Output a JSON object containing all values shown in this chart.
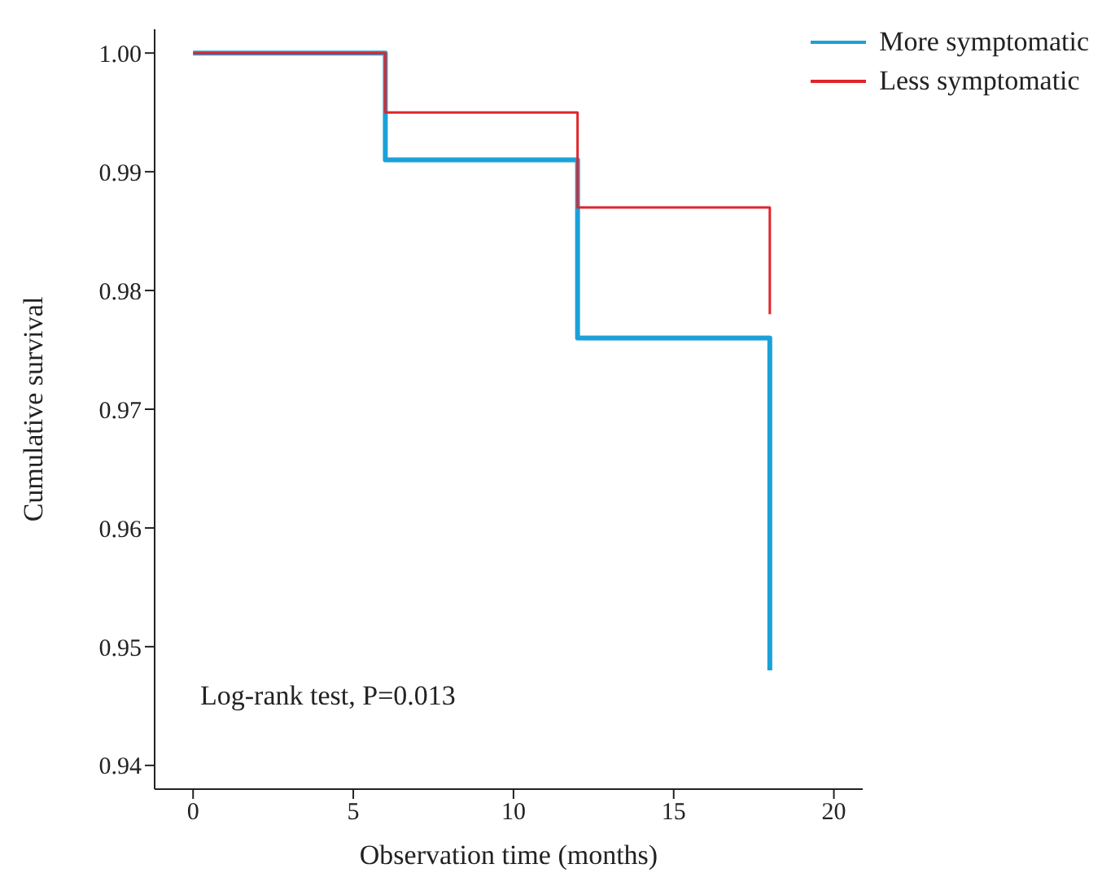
{
  "chart_data": {
    "type": "step",
    "xlabel": "Observation time (months)",
    "ylabel": "Cumulative survival",
    "series": [
      {
        "name": "More symptomatic",
        "color": "#1ba1d8",
        "x": [
          0,
          6,
          12,
          18,
          18
        ],
        "values": [
          1.0,
          0.991,
          0.976,
          0.976,
          0.948
        ]
      },
      {
        "name": "Less symptomatic",
        "color": "#e0252b",
        "x": [
          0,
          6,
          12,
          18,
          18
        ],
        "values": [
          1.0,
          0.995,
          0.987,
          0.987,
          0.978
        ]
      }
    ],
    "xlim": [
      -1.2,
      20.9
    ],
    "xticks": [
      0,
      5,
      10,
      15,
      20
    ],
    "ylim": [
      0.938,
      1.002
    ],
    "yticks": [
      {
        "value": 0.94,
        "label": "0.94"
      },
      {
        "value": 0.95,
        "label": "0.95"
      },
      {
        "value": 0.96,
        "label": "0.96"
      },
      {
        "value": 0.97,
        "label": "0.97"
      },
      {
        "value": 0.98,
        "label": "0.98"
      },
      {
        "value": 0.99,
        "label": "0.99"
      },
      {
        "value": 1.0,
        "label": "1.00"
      }
    ],
    "grid": false,
    "legend": "top right",
    "marker": "none",
    "line_style": "solid",
    "annotations": [
      "Log-rank test, P=0.013"
    ]
  }
}
